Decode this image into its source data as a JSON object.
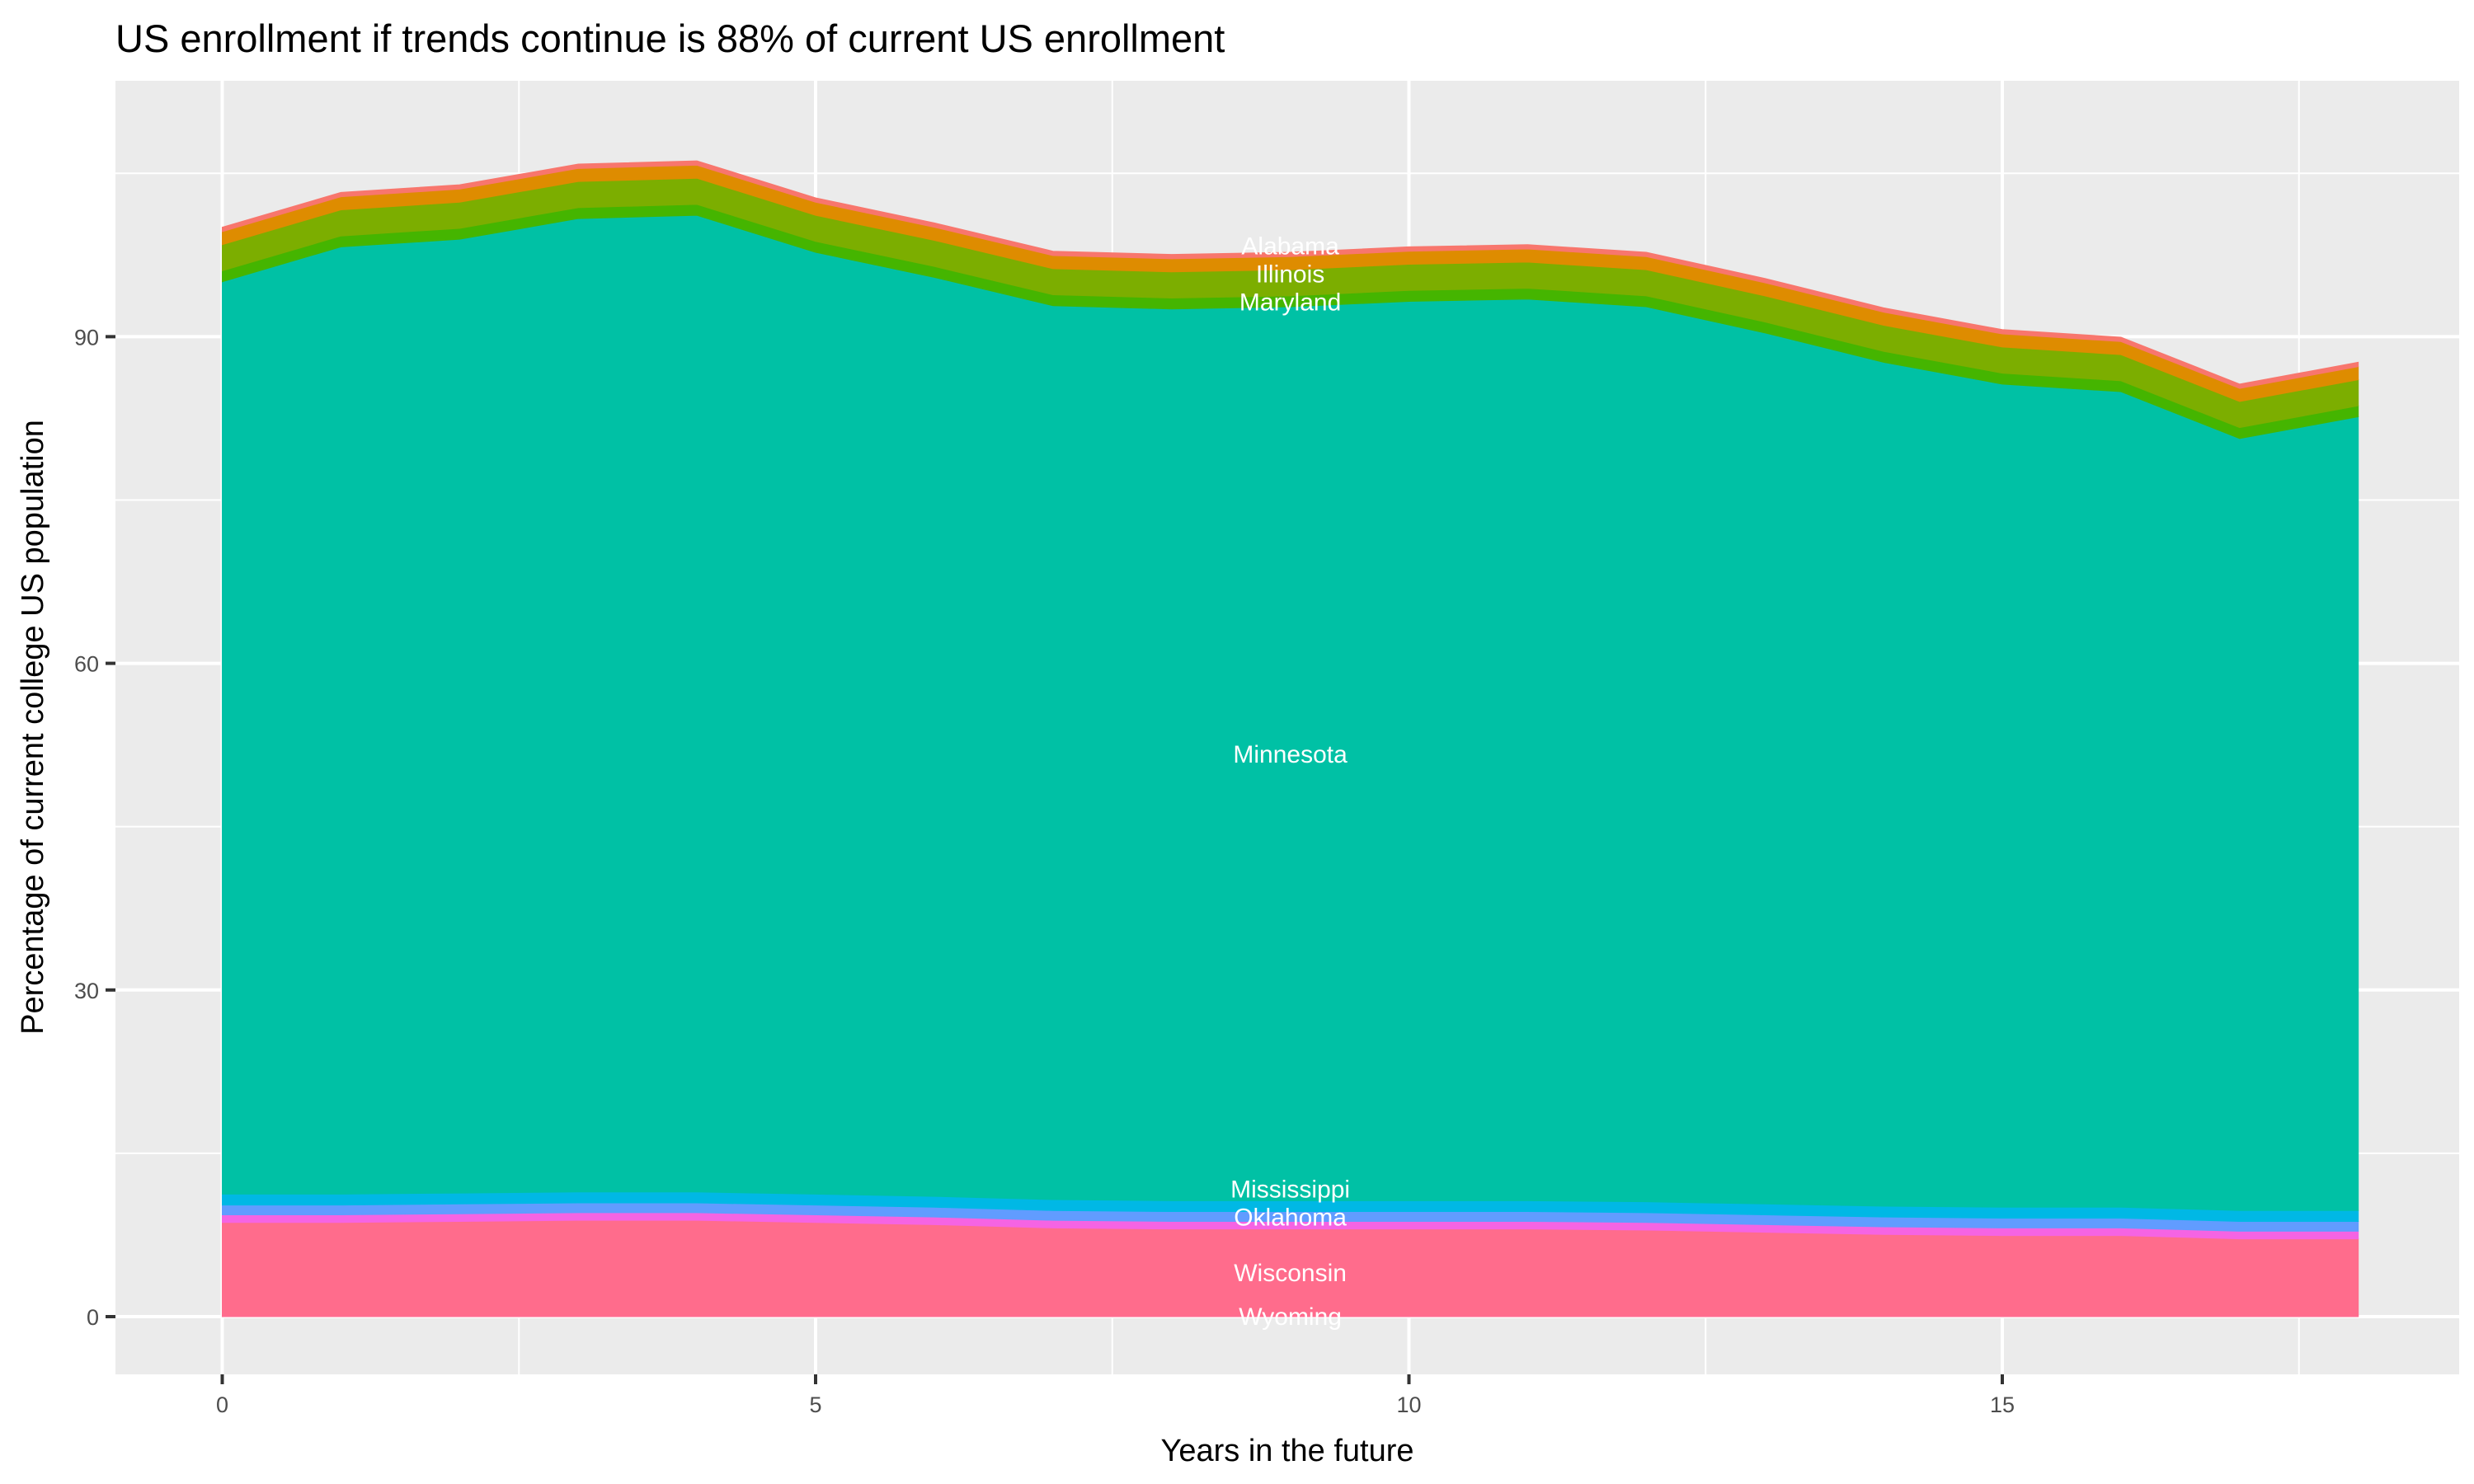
{
  "chart_data": {
    "type": "area",
    "stacked": true,
    "title": "US enrollment if trends continue is 88% of current US enrollment",
    "xlabel": "Years in the future",
    "ylabel": "Percentage of current college US population",
    "x": [
      0,
      1,
      2,
      3,
      4,
      5,
      6,
      7,
      8,
      9,
      10,
      11,
      12,
      13,
      14,
      15,
      16,
      17,
      18
    ],
    "xlim": [
      -0.9,
      18.85
    ],
    "ylim": [
      -5.3,
      113.5
    ],
    "xticks": [
      0,
      5,
      10,
      15
    ],
    "yticks": [
      0,
      30,
      60,
      90
    ],
    "grid": true,
    "legend": "none",
    "series": [
      {
        "name": "Wyoming",
        "color": "#FF6C91",
        "values": [
          0.15,
          0.15,
          0.15,
          0.15,
          0.15,
          0.15,
          0.15,
          0.15,
          0.15,
          0.15,
          0.15,
          0.15,
          0.15,
          0.15,
          0.15,
          0.15,
          0.15,
          0.15,
          0.15
        ]
      },
      {
        "name": "Wisconsin",
        "color": "#FF6C8C",
        "values": [
          8.5,
          8.5,
          8.6,
          8.7,
          8.7,
          8.5,
          8.3,
          8.0,
          7.9,
          7.9,
          7.9,
          7.9,
          7.8,
          7.6,
          7.4,
          7.3,
          7.3,
          7.0,
          7.0
        ]
      },
      {
        "color": "#F564E3",
        "values": [
          0.7,
          0.7,
          0.7,
          0.7,
          0.7,
          0.7,
          0.7,
          0.7,
          0.7,
          0.7,
          0.7,
          0.7,
          0.7,
          0.7,
          0.7,
          0.7,
          0.7,
          0.7,
          0.7
        ]
      },
      {
        "name": "Oklahoma",
        "color": "#619CFF",
        "values": [
          0.9,
          0.9,
          0.9,
          0.9,
          0.9,
          0.9,
          0.9,
          0.9,
          0.9,
          0.9,
          0.9,
          0.9,
          0.9,
          0.9,
          0.9,
          0.9,
          0.9,
          0.9,
          0.9
        ]
      },
      {
        "name": "Mississippi",
        "color": "#00B8E5",
        "values": [
          1.0,
          1.0,
          1.0,
          1.0,
          1.0,
          1.0,
          1.0,
          1.0,
          1.0,
          1.0,
          1.0,
          1.0,
          1.0,
          1.0,
          1.0,
          1.0,
          1.0,
          1.0,
          1.0
        ]
      },
      {
        "name": "Minnesota",
        "color": "#00C1A5",
        "values": [
          83.8,
          87.0,
          87.6,
          89.4,
          89.7,
          86.5,
          84.4,
          82.1,
          81.9,
          82.1,
          82.6,
          82.8,
          82.2,
          80.0,
          77.5,
          75.6,
          74.9,
          70.9,
          72.9
        ]
      },
      {
        "name": "Maryland",
        "color": "#45B500",
        "values": [
          1.0,
          1.0,
          1.0,
          1.0,
          1.0,
          1.0,
          1.0,
          1.0,
          1.0,
          1.0,
          1.0,
          1.0,
          1.0,
          1.0,
          1.0,
          1.0,
          1.0,
          1.0,
          1.0
        ]
      },
      {
        "name": "Illinois",
        "color": "#7CAE00",
        "values": [
          2.4,
          2.4,
          2.4,
          2.4,
          2.4,
          2.4,
          2.4,
          2.4,
          2.4,
          2.4,
          2.4,
          2.4,
          2.4,
          2.4,
          2.4,
          2.4,
          2.4,
          2.4,
          2.4
        ]
      },
      {
        "name": "Alabama",
        "color": "#DE8C00",
        "values": [
          1.2,
          1.2,
          1.2,
          1.2,
          1.2,
          1.2,
          1.2,
          1.2,
          1.2,
          1.2,
          1.2,
          1.2,
          1.2,
          1.2,
          1.2,
          1.2,
          1.2,
          1.2,
          1.2
        ]
      },
      {
        "color": "#F8766D",
        "values": [
          0.4,
          0.4,
          0.4,
          0.4,
          0.4,
          0.4,
          0.4,
          0.4,
          0.4,
          0.4,
          0.4,
          0.4,
          0.4,
          0.4,
          0.4,
          0.4,
          0.4,
          0.4,
          0.4
        ]
      }
    ],
    "label_x": 9,
    "panel_background": "#EBEBEB",
    "grid_color": "#FFFFFF"
  }
}
